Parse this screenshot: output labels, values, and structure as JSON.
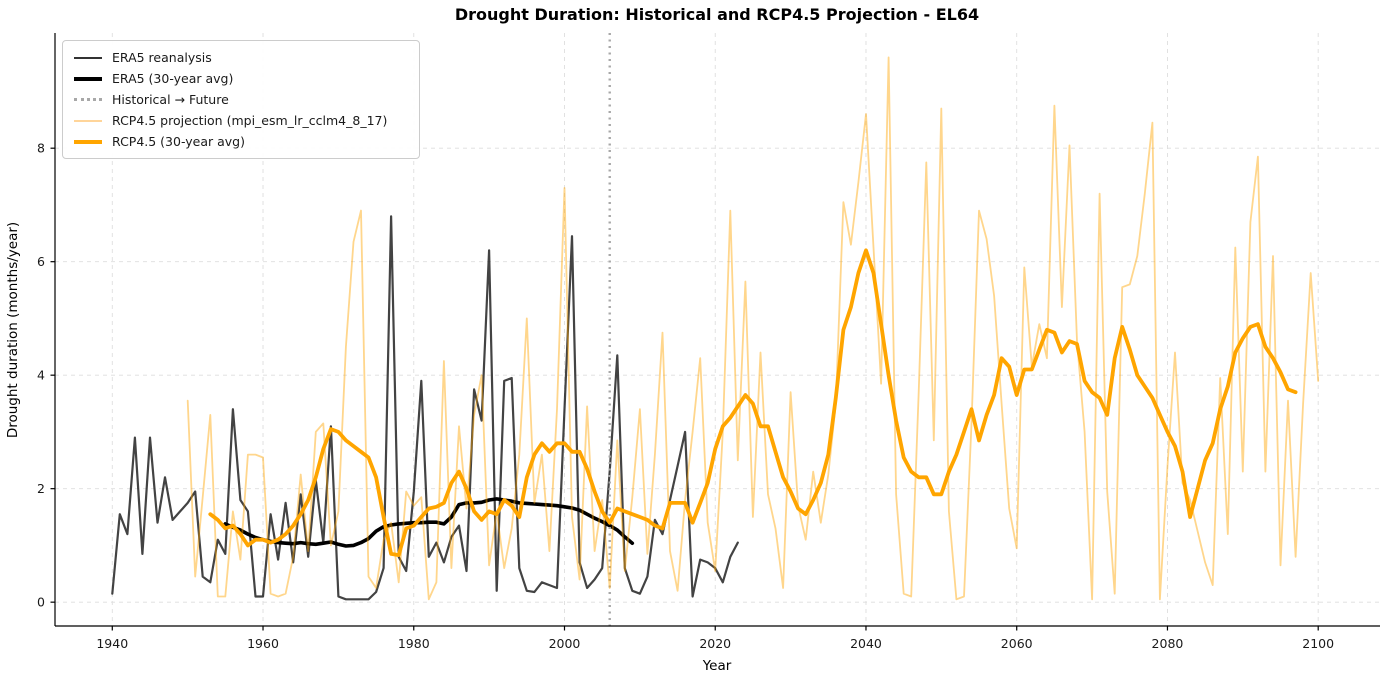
{
  "chart_data": {
    "type": "line",
    "title": "Drought Duration: Historical and RCP4.5 Projection - EL64",
    "xlabel": "Year",
    "ylabel": "Drought duration (months/year)",
    "xlim": [
      1932.4,
      2108.2
    ],
    "ylim": [
      -0.42,
      10.03
    ],
    "xticks": [
      1940,
      1960,
      1980,
      2000,
      2020,
      2040,
      2060,
      2080,
      2100
    ],
    "yticks": [
      0,
      2,
      4,
      6,
      8
    ],
    "grid": {
      "on": true,
      "style": "dashed",
      "color": "#dedede"
    },
    "transition_line": {
      "x": 2006,
      "label": "Historical → Future",
      "color": "#a8a8a8",
      "style": "dotted"
    },
    "series": [
      {
        "name": "ERA5 reanalysis",
        "color": "#1a1a1a",
        "opacity": 0.82,
        "width": 2.2,
        "start_year": 1940,
        "values": [
          0.15,
          1.55,
          1.2,
          2.9,
          0.85,
          2.9,
          1.4,
          2.2,
          1.45,
          1.6,
          1.75,
          1.95,
          0.45,
          0.35,
          1.1,
          0.85,
          3.4,
          1.8,
          1.6,
          0.1,
          0.1,
          1.55,
          0.75,
          1.75,
          0.7,
          1.9,
          0.8,
          2.15,
          1.05,
          3.1,
          0.1,
          0.05,
          0.05,
          0.05,
          0.05,
          0.18,
          0.6,
          6.8,
          0.8,
          0.55,
          1.95,
          3.9,
          0.8,
          1.05,
          0.7,
          1.15,
          1.35,
          0.55,
          3.75,
          3.2,
          6.2,
          0.2,
          3.9,
          3.95,
          0.6,
          0.2,
          0.18,
          0.35,
          0.3,
          0.25,
          3.4,
          6.45,
          0.7,
          0.25,
          0.4,
          0.6,
          2.3,
          4.35,
          0.6,
          0.2,
          0.15,
          0.45,
          1.45,
          1.2,
          1.8,
          2.4,
          3.0,
          0.1,
          0.75,
          0.7,
          0.6,
          0.35,
          0.8,
          1.05
        ]
      },
      {
        "name": "ERA5 (30-year avg)",
        "color": "#000000",
        "opacity": 1,
        "width": 3.6,
        "start_year": 1955,
        "values": [
          1.38,
          1.32,
          1.27,
          1.2,
          1.14,
          1.1,
          1.07,
          1.05,
          1.04,
          1.03,
          1.05,
          1.03,
          1.02,
          1.04,
          1.06,
          1.02,
          0.99,
          1.0,
          1.05,
          1.12,
          1.25,
          1.33,
          1.36,
          1.38,
          1.39,
          1.4,
          1.4,
          1.41,
          1.41,
          1.38,
          1.5,
          1.72,
          1.75,
          1.75,
          1.76,
          1.8,
          1.82,
          1.8,
          1.78,
          1.75,
          1.74,
          1.73,
          1.72,
          1.71,
          1.7,
          1.68,
          1.66,
          1.62,
          1.55,
          1.48,
          1.42,
          1.35,
          1.27,
          1.15,
          1.04
        ]
      },
      {
        "name": "RCP4.5 projection (mpi_esm_lr_cclm4_8_17)",
        "color": "#ffa500",
        "opacity": 0.45,
        "width": 1.8,
        "start_year": 1950,
        "values": [
          3.55,
          0.45,
          1.85,
          3.3,
          0.1,
          0.1,
          1.6,
          0.75,
          2.6,
          2.6,
          2.55,
          0.15,
          0.1,
          0.15,
          0.8,
          2.25,
          0.9,
          3.0,
          3.15,
          1.0,
          1.6,
          4.5,
          6.35,
          6.9,
          0.45,
          0.25,
          1.1,
          1.4,
          0.35,
          1.95,
          1.7,
          1.85,
          0.05,
          0.35,
          4.25,
          0.6,
          3.1,
          1.65,
          3.3,
          4.0,
          0.65,
          1.6,
          0.6,
          1.3,
          2.6,
          5.0,
          1.75,
          2.6,
          0.9,
          3.4,
          7.3,
          1.5,
          0.4,
          3.45,
          0.9,
          1.8,
          0.25,
          2.85,
          0.55,
          1.85,
          3.4,
          0.85,
          2.6,
          4.75,
          0.9,
          0.2,
          1.8,
          3.0,
          4.3,
          1.4,
          0.55,
          3.0,
          6.9,
          2.5,
          5.65,
          1.5,
          4.4,
          1.9,
          1.3,
          0.25,
          3.7,
          1.7,
          1.1,
          2.3,
          1.4,
          2.25,
          3.5,
          7.05,
          6.3,
          7.4,
          8.6,
          6.25,
          3.85,
          9.6,
          1.9,
          0.15,
          0.1,
          3.7,
          7.75,
          2.85,
          8.7,
          1.6,
          0.05,
          0.1,
          3.15,
          6.9,
          6.4,
          5.4,
          3.5,
          1.65,
          0.95,
          5.9,
          4.15,
          4.9,
          4.3,
          8.75,
          5.2,
          8.05,
          4.6,
          3.0,
          0.05,
          7.2,
          1.95,
          0.15,
          5.55,
          5.6,
          6.1,
          7.2,
          8.45,
          0.05,
          2.4,
          4.4,
          2.1,
          1.8,
          1.25,
          0.7,
          0.3,
          3.95,
          1.2,
          6.25,
          2.3,
          6.7,
          7.85,
          2.3,
          6.1,
          0.65,
          3.55,
          0.8,
          3.5,
          5.8,
          3.9
        ]
      },
      {
        "name": "RCP4.5 (30-year avg)",
        "color": "#ffa500",
        "opacity": 1,
        "width": 3.8,
        "start_year": 1953,
        "values": [
          1.55,
          1.45,
          1.3,
          1.35,
          1.2,
          1.0,
          1.1,
          1.1,
          1.05,
          1.1,
          1.2,
          1.35,
          1.55,
          1.8,
          2.2,
          2.7,
          3.05,
          3.0,
          2.85,
          2.75,
          2.65,
          2.55,
          2.2,
          1.5,
          0.85,
          0.83,
          1.3,
          1.35,
          1.5,
          1.65,
          1.68,
          1.75,
          2.1,
          2.3,
          2.0,
          1.6,
          1.45,
          1.6,
          1.55,
          1.8,
          1.7,
          1.5,
          2.2,
          2.6,
          2.8,
          2.65,
          2.8,
          2.8,
          2.65,
          2.65,
          2.35,
          1.95,
          1.6,
          1.4,
          1.65,
          1.6,
          1.55,
          1.5,
          1.45,
          1.35,
          1.3,
          1.75,
          1.75,
          1.75,
          1.4,
          1.75,
          2.1,
          2.7,
          3.1,
          3.25,
          3.45,
          3.65,
          3.5,
          3.1,
          3.1,
          2.65,
          2.2,
          1.95,
          1.65,
          1.55,
          1.8,
          2.1,
          2.6,
          3.6,
          4.8,
          5.2,
          5.8,
          6.2,
          5.8,
          4.9,
          4.0,
          3.2,
          2.55,
          2.3,
          2.2,
          2.2,
          1.9,
          1.9,
          2.3,
          2.6,
          3.0,
          3.4,
          2.85,
          3.3,
          3.65,
          4.3,
          4.15,
          3.65,
          4.1,
          4.1,
          4.45,
          4.8,
          4.75,
          4.4,
          4.6,
          4.55,
          3.9,
          3.7,
          3.6,
          3.3,
          4.3,
          4.85,
          4.45,
          4.0,
          3.8,
          3.6,
          3.3,
          3.0,
          2.75,
          2.3,
          1.5,
          2.0,
          2.5,
          2.8,
          3.4,
          3.8,
          4.4,
          4.65,
          4.85,
          4.9,
          4.5,
          4.3,
          4.05,
          3.75,
          3.7
        ]
      }
    ]
  },
  "legend": {
    "items": [
      {
        "label": "ERA5 reanalysis",
        "color": "#333333",
        "thickness": 2,
        "style": "solid"
      },
      {
        "label": "ERA5 (30-year avg)",
        "color": "#000000",
        "thickness": 4,
        "style": "solid"
      },
      {
        "label": "Historical → Future",
        "color": "#a8a8a8",
        "thickness": 3,
        "style": "dotted"
      },
      {
        "label": "RCP4.5 projection (mpi_esm_lr_cclm4_8_17)",
        "color": "#ffd59a",
        "thickness": 2,
        "style": "solid"
      },
      {
        "label": "RCP4.5 (30-year avg)",
        "color": "#ffa500",
        "thickness": 4,
        "style": "solid"
      }
    ]
  }
}
